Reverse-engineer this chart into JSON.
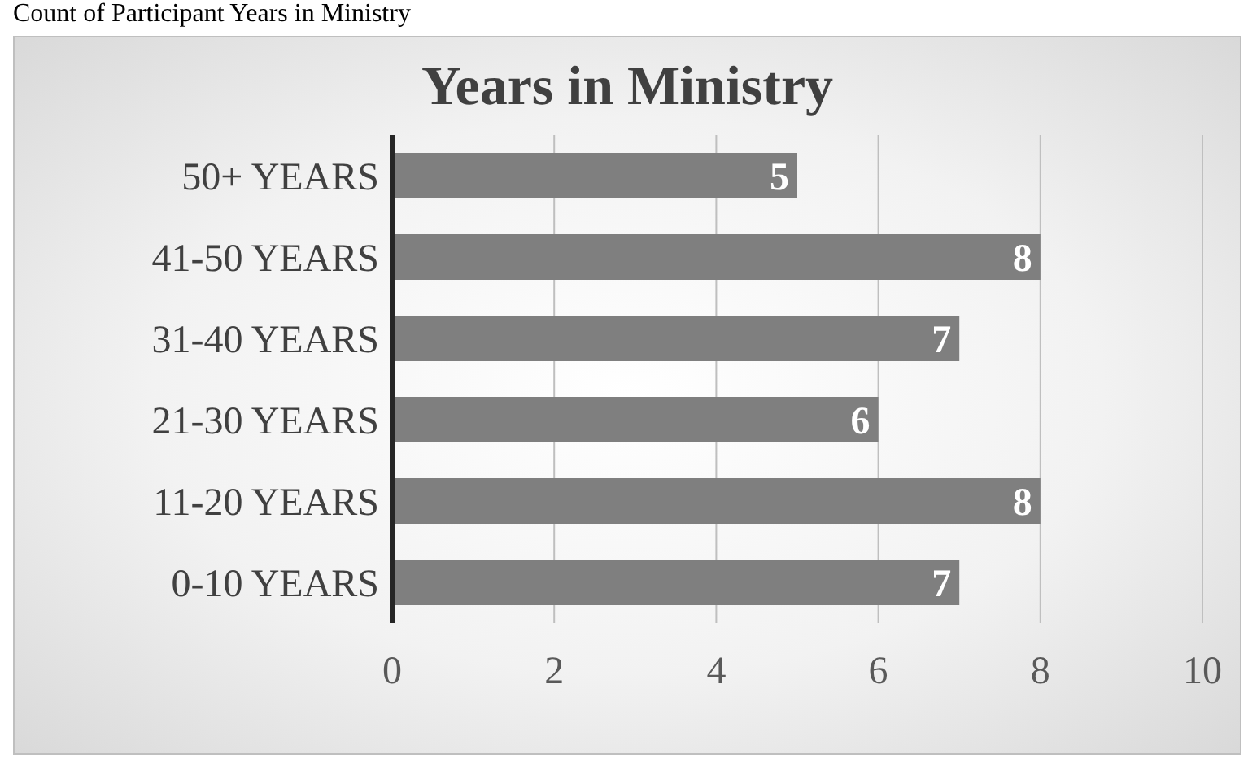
{
  "chart_data": {
    "type": "bar",
    "orientation": "horizontal",
    "title": "Years in Ministry",
    "annotations": [
      "Count of Participant Years in Ministry"
    ],
    "categories": [
      "50+ YEARS",
      "41-50 YEARS",
      "31-40 YEARS",
      "21-30 YEARS",
      "11-20 YEARS",
      "0-10 YEARS"
    ],
    "values": [
      5,
      8,
      7,
      6,
      8,
      7
    ],
    "color": "#7f7f7f",
    "xlim": [
      0,
      10
    ],
    "xticks": [
      0,
      2,
      4,
      6,
      8,
      10
    ],
    "grid": "x",
    "data_labels": true
  }
}
